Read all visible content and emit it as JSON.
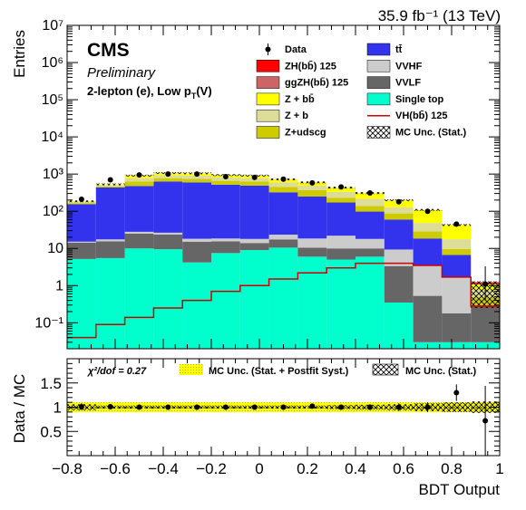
{
  "lumi": "35.9 fb⁻¹ (13 TeV)",
  "cms": {
    "title": "CMS",
    "subtitle": "Preliminary",
    "region": "2-lepton (e), Low p",
    "region_sub": "T",
    "region_tail": "(V)"
  },
  "ratio_text": {
    "chi2": "χ²/dof = 0.27",
    "unc_postfit": "MC Unc. (Stat. + Postfit Syst.)",
    "unc_stat": "MC Unc. (Stat.)"
  },
  "chart_data": [
    {
      "type": "bar",
      "stacked": true,
      "ylabel": "Entries",
      "yscale": "log",
      "ylim": [
        0.02,
        10000000
      ],
      "xlim": [
        -0.8,
        1.0
      ],
      "x_edges": [
        -0.8,
        -0.68,
        -0.56,
        -0.44,
        -0.32,
        -0.2,
        -0.08,
        0.04,
        0.16,
        0.28,
        0.4,
        0.52,
        0.64,
        0.76,
        0.88,
        1.0
      ],
      "y_ticks": [
        "10⁻¹",
        "1",
        "10",
        "10²",
        "10³",
        "10⁴",
        "10⁵",
        "10⁶",
        "10⁷"
      ],
      "series": [
        {
          "name": "Single top",
          "color": "#00ffcc",
          "values": [
            5.2,
            5.5,
            10,
            9.5,
            4.2,
            7.5,
            9,
            10.5,
            6,
            5,
            6,
            0.35,
            0.03,
            0.03,
            0.03
          ]
        },
        {
          "name": "VVLF",
          "color": "#666666",
          "values": [
            9,
            10,
            15,
            14,
            11,
            8,
            5,
            7,
            4.5,
            5,
            4,
            3,
            0.5,
            0.15,
            0.25
          ]
        },
        {
          "name": "VVHF",
          "color": "#cccccc",
          "values": [
            1,
            2,
            3,
            3,
            3,
            3,
            4,
            6,
            8,
            12,
            8,
            6,
            3,
            1.5,
            0
          ]
        },
        {
          "name": "tt̄",
          "color": "#3333ee",
          "values": [
            140,
            420,
            450,
            600,
            580,
            500,
            470,
            300,
            230,
            150,
            80,
            50,
            15,
            5,
            0
          ]
        },
        {
          "name": "Z+udscg",
          "color": "#cccc00",
          "values": [
            10,
            30,
            150,
            150,
            150,
            140,
            140,
            130,
            120,
            60,
            40,
            28,
            10,
            3,
            0.2
          ]
        },
        {
          "name": "Z + b",
          "color": "#dddd99",
          "values": [
            10,
            30,
            150,
            160,
            160,
            150,
            150,
            140,
            120,
            100,
            80,
            40,
            20,
            8,
            0.3
          ]
        },
        {
          "name": "Z + bb̄",
          "color": "#ffff00",
          "values": [
            10,
            30,
            130,
            130,
            140,
            130,
            130,
            130,
            110,
            100,
            90,
            70,
            60,
            25,
            0.3
          ]
        },
        {
          "name": "ggZH(bb̄) 125",
          "color": "#cc6666",
          "values": [
            0,
            0,
            0,
            0,
            0,
            0,
            0,
            0,
            0,
            0,
            0,
            0,
            0,
            0,
            0.05
          ]
        },
        {
          "name": "ZH(bb̄) 125",
          "color": "#ff0000",
          "values": [
            0,
            0,
            0,
            0,
            0,
            0,
            0,
            0,
            0,
            0,
            0,
            0,
            0,
            0,
            0.1
          ]
        }
      ],
      "signal_line": {
        "name": "VH(bb̄) 125",
        "color": "#cc0000",
        "values": [
          0.04,
          0.09,
          0.14,
          0.25,
          0.4,
          0.7,
          1.0,
          1.5,
          2.2,
          3.0,
          4.0,
          4.0,
          3.5,
          1.7,
          0.28
        ]
      },
      "data_points": {
        "name": "Data",
        "x": [
          -0.74,
          -0.62,
          -0.5,
          -0.38,
          -0.26,
          -0.14,
          -0.02,
          0.1,
          0.22,
          0.34,
          0.46,
          0.58,
          0.7,
          0.82,
          0.94
        ],
        "y": [
          210,
          700,
          950,
          1000,
          1000,
          850,
          810,
          730,
          580,
          450,
          310,
          180,
          100,
          45,
          1.1
        ],
        "yerr_lo": [
          14,
          26,
          31,
          32,
          32,
          29,
          28,
          27,
          24,
          21,
          18,
          13,
          10,
          7,
          0.7
        ],
        "yerr_hi": [
          14,
          26,
          31,
          32,
          32,
          29,
          28,
          27,
          24,
          21,
          18,
          13,
          10,
          7,
          2.2
        ]
      },
      "legend": [
        "Data",
        "tt̄",
        "ZH(bb̄) 125",
        "VVHF",
        "ggZH(bb̄) 125",
        "VVLF",
        "Z + bb̄",
        "Single top",
        "Z + b",
        "VH(bb̄) 125",
        "Z+udscg",
        "MC Unc. (Stat.)"
      ],
      "legend_placement": "top-right"
    },
    {
      "type": "scatter",
      "xlabel": "BDT Output",
      "ylabel": "Data / MC",
      "xlim": [
        -0.8,
        1.0
      ],
      "ylim": [
        0,
        2
      ],
      "x_ticks": [
        "−0.8",
        "−0.6",
        "−0.4",
        "−0.2",
        "0",
        "0.2",
        "0.4",
        "0.6",
        "0.8",
        "1"
      ],
      "y_ticks": [
        "0.5",
        "1",
        "1.5"
      ],
      "x": [
        -0.74,
        -0.62,
        -0.5,
        -0.38,
        -0.26,
        -0.14,
        -0.02,
        0.1,
        0.22,
        0.34,
        0.46,
        0.58,
        0.7,
        0.82,
        0.94
      ],
      "y": [
        1.01,
        1.01,
        1.0,
        1.0,
        1.0,
        1.0,
        1.0,
        1.0,
        1.02,
        1.0,
        1.0,
        1.0,
        1.0,
        1.3,
        0.72
      ],
      "yerr": [
        0.07,
        0.04,
        0.03,
        0.03,
        0.03,
        0.03,
        0.03,
        0.04,
        0.04,
        0.05,
        0.06,
        0.08,
        0.1,
        0.17,
        0.72
      ],
      "band_postfit": [
        0.1,
        0.1,
        0.1,
        0.1,
        0.1,
        0.1,
        0.1,
        0.1,
        0.1,
        0.1,
        0.1,
        0.1,
        0.1,
        0.1,
        0.1
      ],
      "band_stat": [
        0.06,
        0.03,
        0.03,
        0.03,
        0.03,
        0.03,
        0.03,
        0.03,
        0.03,
        0.04,
        0.05,
        0.06,
        0.08,
        0.1,
        0.12
      ]
    }
  ]
}
